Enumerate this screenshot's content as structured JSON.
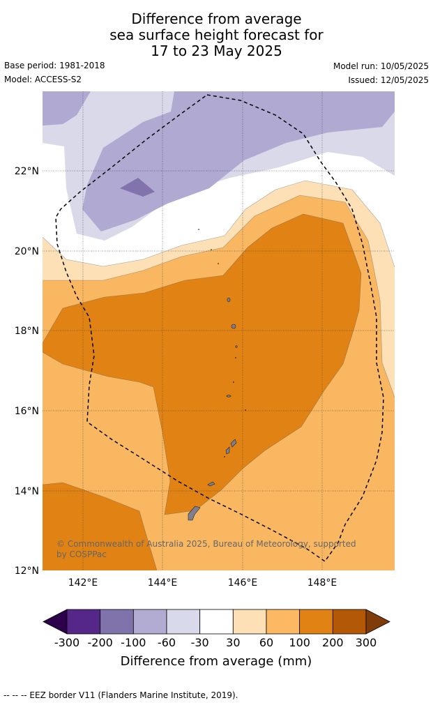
{
  "title": {
    "line1": "Difference from average",
    "line2": "sea surface height forecast for",
    "line3": "17 to 23 May 2025"
  },
  "meta": {
    "base_period": "Base period: 1981-2018",
    "model": "Model: ACCESS-S2",
    "model_run": "Model run: 10/05/2025",
    "issued": "Issued: 12/05/2025"
  },
  "map": {
    "lat_ticks": [
      "22°N",
      "20°N",
      "18°N",
      "16°N",
      "14°N",
      "12°N"
    ],
    "lon_ticks": [
      "142°E",
      "144°E",
      "146°E",
      "148°E"
    ],
    "copyright_line1": "© Commonwealth of Australia 2025, Bureau of Meteorology, supported",
    "copyright_line2": "by COSPPac",
    "colors": {
      "c_neg200": "#5b2a87",
      "c_neg100": "#8373ad",
      "c_neg60": "#b0a9d1",
      "c_neg30": "#d9d9ea",
      "c_zero": "#ffffff",
      "c_30": "#fee0b6",
      "c_60": "#f9b762",
      "c_100": "#e08214",
      "c_200": "#b35806"
    }
  },
  "colorbar": {
    "labels": [
      "-300",
      "-200",
      "-100",
      "-60",
      "-30",
      "30",
      "60",
      "100",
      "200",
      "300"
    ],
    "title": "Difference from average (mm)",
    "colors": [
      "#2d004b",
      "#542788",
      "#8073ac",
      "#b2abd2",
      "#d8daeb",
      "#ffffff",
      "#fee0b6",
      "#fdb863",
      "#e08214",
      "#b35806",
      "#7f3b08"
    ]
  },
  "footer": "--  --  -- EEZ border V11 (Flanders Marine Institute, 2019)."
}
